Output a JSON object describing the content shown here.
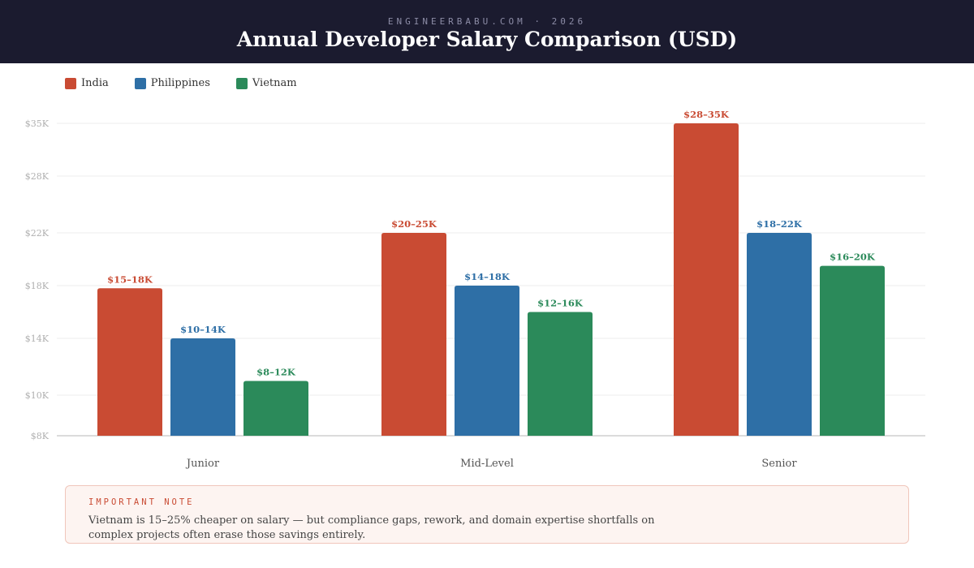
{
  "header": {
    "kicker": "ENGINEERBABU.COM · 2026",
    "title": "Annual Developer Salary Comparison (USD)"
  },
  "legend": [
    {
      "name": "India",
      "color": "#c94b33"
    },
    {
      "name": "Philippines",
      "color": "#2e6fa6"
    },
    {
      "name": "Vietnam",
      "color": "#2b8a5a"
    }
  ],
  "chart_data": {
    "type": "bar",
    "title": "Annual Developer Salary Comparison (USD)",
    "categories": [
      "Junior",
      "Mid-Level",
      "Senior"
    ],
    "series": [
      {
        "name": "India",
        "color": "#c94b33",
        "values": [
          17.8,
          22,
          35
        ],
        "labels": [
          "$15–18K",
          "$20–25K",
          "$28–35K"
        ]
      },
      {
        "name": "Philippines",
        "color": "#2e6fa6",
        "values": [
          14,
          18,
          22
        ],
        "labels": [
          "$10–14K",
          "$14–18K",
          "$18–22K"
        ]
      },
      {
        "name": "Vietnam",
        "color": "#2b8a5a",
        "values": [
          11,
          16,
          19.5
        ],
        "labels": [
          "$8–12K",
          "$12–16K",
          "$16–20K"
        ]
      }
    ],
    "y_ticks": [
      "$8K",
      "$10K",
      "$14K",
      "$18K",
      "$22K",
      "$28K",
      "$35K"
    ],
    "ylim": [
      8,
      35
    ],
    "grid": true,
    "legend_position": "top-left",
    "xlabel": "",
    "ylabel": ""
  },
  "note": {
    "label": "IMPORTANT NOTE",
    "text": "Vietnam is 15–25% cheaper on salary — but compliance gaps, rework, and domain expertise shortfalls on complex projects often erase those savings entirely."
  }
}
